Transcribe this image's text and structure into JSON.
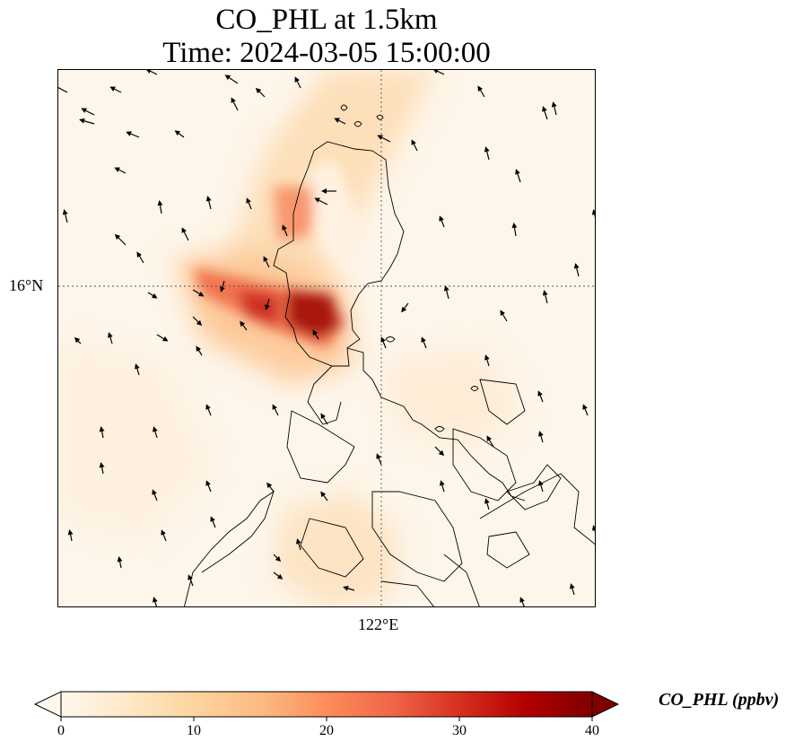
{
  "title": {
    "line1": "CO_PHL at 1.5km",
    "line2": "Time: 2024-03-05 15:00:00"
  },
  "map": {
    "lat_tick_label": "16°N",
    "lon_tick_label": "122°E",
    "gridlines": true,
    "coastlines": true,
    "wind_vectors": true
  },
  "colorbar": {
    "label": "CO_PHL (ppbv)",
    "ticks": [
      "0",
      "10",
      "20",
      "30",
      "40"
    ],
    "range": [
      0,
      40
    ],
    "extend": "both",
    "colormap": "OrRd",
    "colors": [
      "#fff7ec",
      "#fee8c8",
      "#fdd49e",
      "#fdbb84",
      "#fc8d59",
      "#ef6548",
      "#d7301f",
      "#b30000",
      "#7f0000"
    ]
  }
}
